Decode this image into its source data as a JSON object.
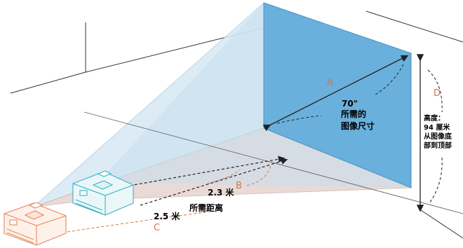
{
  "labels": {
    "a": "A",
    "b": "B",
    "c": "C",
    "d": "D",
    "screen_size": "70\"",
    "screen_desc_1": "所需的",
    "screen_desc_2": "图像尺寸",
    "dist_near": "2.3 米",
    "dist_desc": "所需距离",
    "dist_far": "2.5 米",
    "height_1": "高度：",
    "height_2": "94 厘米",
    "height_3": "从图像底",
    "height_4": "部到顶部"
  },
  "colors": {
    "screen": "#6ab0dc",
    "beam": "#d6e8f3",
    "floor_beam": "#e8d9d4",
    "label_orange": "#d9734a",
    "projector_near": "#3bb3c3",
    "projector_far": "#e58a5c",
    "lines": "#333333"
  }
}
